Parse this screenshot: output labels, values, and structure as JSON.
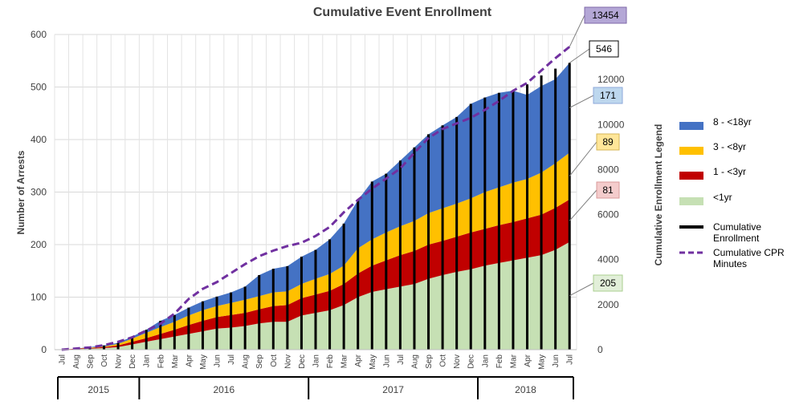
{
  "chart_data": {
    "type": "area",
    "title": "Cumulative Event Enrollment",
    "ylabel": "Number of Arrests",
    "y2label": "Cumulative Enrollment Legend",
    "ylim": [
      0,
      600
    ],
    "y2lim": [
      0,
      14000
    ],
    "yticks": [
      0,
      100,
      200,
      300,
      400,
      500,
      600
    ],
    "y2ticks": [
      0,
      2000,
      4000,
      6000,
      8000,
      10000,
      12000
    ],
    "grid": true,
    "legend_position": "right",
    "months": [
      "Jul",
      "Aug",
      "Sep",
      "Oct",
      "Nov",
      "Dec",
      "Jan",
      "Feb",
      "Mar",
      "Apr",
      "May",
      "Jun",
      "Jul",
      "Aug",
      "Sep",
      "Oct",
      "Nov",
      "Dec",
      "Jan",
      "Feb",
      "Mar",
      "Apr",
      "May",
      "Jun",
      "Jul",
      "Aug",
      "Sep",
      "Oct",
      "Nov",
      "Dec",
      "Jan",
      "Feb",
      "Mar",
      "Apr",
      "May",
      "Jun",
      "Jul"
    ],
    "years": [
      {
        "label": "2015",
        "span": 6
      },
      {
        "label": "2016",
        "span": 12
      },
      {
        "label": "2017",
        "span": 12
      },
      {
        "label": "2018",
        "span": 7
      }
    ],
    "series": [
      {
        "name": "<1yr",
        "color": "#c6e0b4",
        "values": [
          0,
          1,
          2,
          3,
          5,
          10,
          15,
          20,
          25,
          30,
          35,
          40,
          42,
          45,
          50,
          53,
          53,
          65,
          70,
          75,
          85,
          100,
          110,
          115,
          120,
          125,
          135,
          142,
          148,
          153,
          160,
          165,
          170,
          175,
          180,
          190,
          205
        ]
      },
      {
        "name": "1 - <3yr",
        "color": "#c00000",
        "values": [
          0,
          1,
          1,
          2,
          3,
          5,
          7,
          10,
          13,
          17,
          20,
          22,
          24,
          25,
          27,
          30,
          32,
          33,
          35,
          37,
          40,
          45,
          50,
          55,
          60,
          63,
          65,
          65,
          67,
          70,
          70,
          72,
          73,
          75,
          77,
          80,
          81
        ]
      },
      {
        "name": "3 - <8yr",
        "color": "#ffc000",
        "values": [
          0,
          0,
          1,
          1,
          3,
          6,
          10,
          13,
          15,
          18,
          20,
          21,
          23,
          25,
          25,
          26,
          26,
          27,
          30,
          32,
          35,
          48,
          50,
          53,
          55,
          57,
          60,
          62,
          63,
          65,
          70,
          72,
          75,
          75,
          80,
          85,
          89
        ]
      },
      {
        "name": "8 - <18yr",
        "color": "#4472c4",
        "values": [
          0,
          0,
          1,
          2,
          2,
          4,
          6,
          12,
          13,
          15,
          17,
          18,
          20,
          25,
          40,
          45,
          48,
          52,
          55,
          66,
          80,
          92,
          110,
          112,
          125,
          140,
          150,
          158,
          165,
          180,
          180,
          180,
          175,
          160,
          165,
          160,
          171
        ]
      }
    ],
    "cumulative_enrollment": [
      0,
      2,
      5,
      8,
      13,
      25,
      38,
      55,
      66,
      80,
      92,
      101,
      109,
      120,
      142,
      154,
      159,
      177,
      190,
      210,
      240,
      285,
      320,
      335,
      360,
      385,
      410,
      427,
      443,
      468,
      480,
      489,
      493,
      505,
      522,
      535,
      546
    ],
    "cumulative_cpr_minutes": {
      "name": "Cumulative CPR Minutes",
      "color": "#7030a0",
      "values": [
        0,
        50,
        100,
        200,
        350,
        550,
        850,
        1150,
        1600,
        2250,
        2700,
        3000,
        3400,
        3800,
        4150,
        4400,
        4600,
        4750,
        5050,
        5450,
        6100,
        6650,
        7150,
        7600,
        8050,
        8750,
        9400,
        9800,
        10050,
        10300,
        10650,
        11050,
        11500,
        11850,
        12400,
        12950,
        13454
      ]
    },
    "legend": [
      {
        "label": "8 - <18yr",
        "color": "#4472c4",
        "kind": "box"
      },
      {
        "label": "3 - <8yr",
        "color": "#ffc000",
        "kind": "box"
      },
      {
        "label": "1 - <3yr",
        "color": "#c00000",
        "kind": "box"
      },
      {
        "label": "<1yr",
        "color": "#c6e0b4",
        "kind": "box"
      },
      {
        "label": "Cumulative Enrollment",
        "color": "#000000",
        "kind": "line"
      },
      {
        "label": "Cumulative CPR Minutes",
        "color": "#7030a0",
        "kind": "dash"
      }
    ],
    "callouts": [
      {
        "text": "13454",
        "bg": "#b4a7d6",
        "border": "#7f6aa8"
      },
      {
        "text": "546",
        "bg": "#ffffff",
        "border": "#000000"
      },
      {
        "text": "171",
        "bg": "#bdd7ee",
        "border": "#8eaadb"
      },
      {
        "text": "89",
        "bg": "#ffe699",
        "border": "#d6b656"
      },
      {
        "text": "81",
        "bg": "#f4cccc",
        "border": "#d99a9a"
      },
      {
        "text": "205",
        "bg": "#e2efd9",
        "border": "#a9cf8f"
      }
    ]
  }
}
